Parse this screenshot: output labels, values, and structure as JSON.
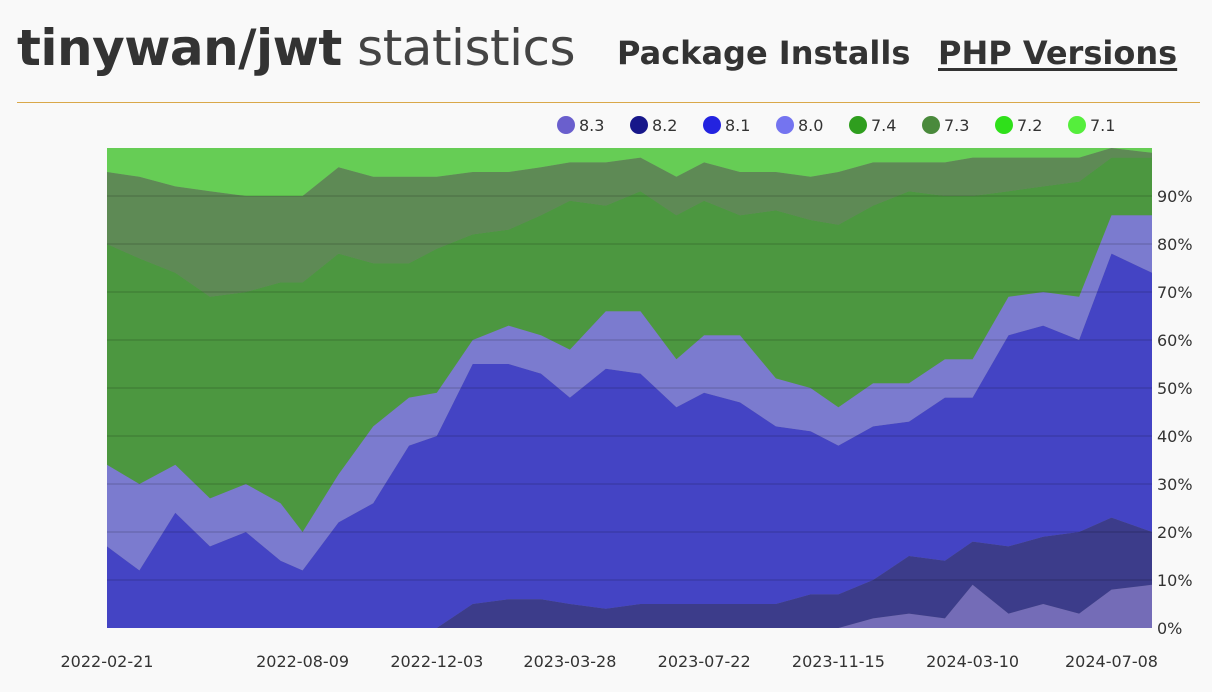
{
  "header": {
    "package": "tinywan/jwt",
    "title_suffix": "statistics",
    "nav": [
      {
        "label": "Package Installs",
        "active": false
      },
      {
        "label": "PHP Versions",
        "active": true
      }
    ]
  },
  "chart_data": {
    "type": "area",
    "stacked": true,
    "normalized_percent": true,
    "title": "",
    "xlabel": "",
    "ylabel": "",
    "ylim": [
      0,
      100
    ],
    "y_ticks": [
      "0%",
      "10%",
      "20%",
      "30%",
      "40%",
      "50%",
      "60%",
      "70%",
      "80%",
      "90%"
    ],
    "x_ticks": [
      "2022-02-21",
      "2022-08-09",
      "2022-12-03",
      "2023-03-28",
      "2023-07-22",
      "2023-11-15",
      "2024-03-10",
      "2024-07-08"
    ],
    "x_range": [
      "2022-02-21",
      "2024-08-12"
    ],
    "grid": true,
    "legend_position": "top-right",
    "x": [
      "2022-02-21",
      "2022-03-21",
      "2022-04-21",
      "2022-05-21",
      "2022-06-21",
      "2022-07-21",
      "2022-08-09",
      "2022-09-09",
      "2022-10-09",
      "2022-11-09",
      "2022-12-03",
      "2023-01-03",
      "2023-02-03",
      "2023-03-03",
      "2023-03-28",
      "2023-04-28",
      "2023-05-28",
      "2023-06-28",
      "2023-07-22",
      "2023-08-22",
      "2023-09-22",
      "2023-10-22",
      "2023-11-15",
      "2023-12-15",
      "2024-01-15",
      "2024-02-15",
      "2024-03-10",
      "2024-04-10",
      "2024-05-10",
      "2024-06-10",
      "2024-07-08",
      "2024-08-12"
    ],
    "series": [
      {
        "name": "8.3",
        "color": "#6a5fcd",
        "values": [
          0,
          0,
          0,
          0,
          0,
          0,
          0,
          0,
          0,
          0,
          0,
          0,
          0,
          0,
          0,
          0,
          0,
          0,
          0,
          0,
          0,
          0,
          0,
          2,
          3,
          2,
          9,
          3,
          5,
          3,
          8,
          9
        ]
      },
      {
        "name": "8.2",
        "color": "#17178a",
        "values": [
          0,
          0,
          0,
          0,
          0,
          0,
          0,
          0,
          0,
          0,
          0,
          5,
          6,
          6,
          5,
          4,
          5,
          5,
          5,
          5,
          5,
          7,
          7,
          8,
          12,
          12,
          9,
          14,
          14,
          17,
          15,
          11
        ]
      },
      {
        "name": "8.1",
        "color": "#2323e0",
        "values": [
          17,
          12,
          24,
          17,
          20,
          14,
          12,
          22,
          26,
          38,
          40,
          50,
          49,
          47,
          43,
          50,
          48,
          41,
          44,
          42,
          37,
          34,
          31,
          32,
          28,
          34,
          30,
          44,
          44,
          40,
          55,
          54
        ]
      },
      {
        "name": "8.0",
        "color": "#7474f0",
        "values": [
          17,
          18,
          10,
          10,
          10,
          12,
          8,
          10,
          16,
          10,
          9,
          5,
          8,
          8,
          10,
          12,
          13,
          10,
          12,
          14,
          10,
          9,
          8,
          9,
          8,
          8,
          8,
          8,
          7,
          9,
          8,
          12
        ]
      },
      {
        "name": "7.4",
        "color": "#2f9e1e",
        "values": [
          46,
          47,
          40,
          42,
          40,
          46,
          52,
          46,
          34,
          28,
          30,
          22,
          20,
          25,
          31,
          22,
          25,
          30,
          28,
          25,
          35,
          35,
          38,
          37,
          40,
          34,
          34,
          22,
          22,
          24,
          12,
          12
        ]
      },
      {
        "name": "7.3",
        "color": "#4a8a3c",
        "values": [
          15,
          17,
          18,
          22,
          20,
          18,
          18,
          18,
          18,
          18,
          15,
          13,
          12,
          10,
          8,
          9,
          7,
          8,
          8,
          9,
          8,
          9,
          11,
          9,
          6,
          7,
          8,
          7,
          6,
          5,
          2,
          1
        ]
      },
      {
        "name": "7.2",
        "color": "#2fe01a",
        "values": [
          0,
          0,
          0,
          0,
          0,
          0,
          0,
          0,
          0,
          0,
          0,
          0,
          0,
          0,
          0,
          0,
          0,
          0,
          0,
          0,
          0,
          0,
          0,
          0,
          0,
          0,
          0,
          0,
          0,
          0,
          0,
          0
        ]
      },
      {
        "name": "7.1",
        "color": "#55ee3c",
        "values": [
          5,
          6,
          8,
          9,
          10,
          10,
          10,
          4,
          6,
          6,
          6,
          5,
          5,
          4,
          3,
          3,
          2,
          6,
          3,
          5,
          5,
          6,
          5,
          3,
          3,
          3,
          2,
          2,
          2,
          2,
          0,
          1
        ]
      }
    ]
  }
}
